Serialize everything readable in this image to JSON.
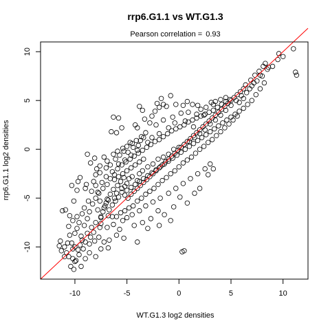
{
  "chart_data": {
    "type": "scatter",
    "title": "rrp6.G1.1 vs WT.G1.3",
    "subtitle_prefix": "Pearson correlation =",
    "subtitle_value": "0.93",
    "xlabel": "WT.G1.3 log2 densities",
    "ylabel": "rrp6.G1.1 log2 densities",
    "xlim": [
      -13.3,
      12.4
    ],
    "ylim": [
      -13.3,
      11.0
    ],
    "xticks": [
      "-10",
      "-5",
      "0",
      "5",
      "10"
    ],
    "yticks": [
      "-10",
      "-5",
      "0",
      "5",
      "10"
    ],
    "xtick_values": [
      -10,
      -5,
      0,
      5,
      10
    ],
    "ytick_values": [
      -10,
      -5,
      0,
      5,
      10
    ],
    "fit_line": {
      "intercept": 0.0,
      "slope": 1.0,
      "color": "#ff0000"
    },
    "point_style": {
      "stroke": "#000000",
      "fill": "none"
    },
    "points": [
      [
        -5.0,
        -3.5
      ],
      [
        -5.5,
        -4.0
      ],
      [
        -4.8,
        -3.0
      ],
      [
        -6.0,
        -4.5
      ],
      [
        -4.5,
        -2.8
      ],
      [
        -5.2,
        -3.8
      ],
      [
        -6.2,
        -5.0
      ],
      [
        -3.8,
        -2.5
      ],
      [
        -4.0,
        -3.2
      ],
      [
        -3.5,
        -2.2
      ],
      [
        -3.0,
        -1.8
      ],
      [
        -2.5,
        -1.5
      ],
      [
        -2.0,
        -1.0
      ],
      [
        -1.5,
        -0.8
      ],
      [
        -1.0,
        -0.5
      ],
      [
        -0.5,
        0.0
      ],
      [
        0.0,
        0.2
      ],
      [
        0.5,
        0.5
      ],
      [
        1.0,
        0.8
      ],
      [
        1.5,
        1.2
      ],
      [
        2.0,
        1.6
      ],
      [
        2.5,
        2.0
      ],
      [
        3.0,
        2.6
      ],
      [
        3.5,
        3.0
      ],
      [
        4.0,
        3.5
      ],
      [
        4.5,
        4.0
      ],
      [
        5.0,
        4.5
      ],
      [
        5.5,
        5.0
      ],
      [
        6.0,
        5.5
      ],
      [
        6.5,
        5.8
      ],
      [
        7.0,
        6.5
      ],
      [
        7.5,
        7.0
      ],
      [
        8.0,
        7.5
      ],
      [
        8.5,
        8.2
      ],
      [
        9.0,
        8.5
      ],
      [
        9.5,
        9.2
      ],
      [
        10.0,
        9.5
      ],
      [
        9.6,
        9.8
      ],
      [
        11.0,
        10.3
      ],
      [
        11.2,
        7.9
      ],
      [
        11.3,
        7.6
      ],
      [
        8.3,
        8.8
      ],
      [
        8.6,
        8.4
      ],
      [
        7.8,
        7.6
      ],
      [
        7.2,
        6.8
      ],
      [
        6.8,
        6.2
      ],
      [
        6.2,
        5.2
      ],
      [
        5.8,
        4.8
      ],
      [
        -7.0,
        -5.5
      ],
      [
        -7.2,
        -6.0
      ],
      [
        -6.8,
        -5.2
      ],
      [
        -7.5,
        -7.0
      ],
      [
        -7.8,
        -6.2
      ],
      [
        -8.0,
        -7.5
      ],
      [
        -7.6,
        -8.0
      ],
      [
        -8.2,
        -8.5
      ],
      [
        -8.5,
        -9.0
      ],
      [
        -9.0,
        -9.5
      ],
      [
        -9.5,
        -9.8
      ],
      [
        -10.0,
        -10.0
      ],
      [
        -11.4,
        -9.4
      ],
      [
        -11.5,
        -9.9
      ],
      [
        -11.0,
        -11.0
      ],
      [
        -10.8,
        -10.6
      ],
      [
        -10.2,
        -11.2
      ],
      [
        -10.0,
        -11.5
      ],
      [
        -10.1,
        -12.3
      ],
      [
        -9.6,
        -10.8
      ],
      [
        -9.2,
        -10.2
      ],
      [
        -11.2,
        -6.3
      ],
      [
        -10.9,
        -6.2
      ],
      [
        -10.5,
        -6.8
      ],
      [
        -10.2,
        -7.3
      ],
      [
        -9.8,
        -6.9
      ],
      [
        -10.1,
        -5.3
      ],
      [
        -10.3,
        -3.7
      ],
      [
        -9.8,
        -4.2
      ],
      [
        -9.7,
        -3.3
      ],
      [
        -9.5,
        -2.9
      ],
      [
        -9.0,
        -4.0
      ],
      [
        -8.9,
        -3.6
      ],
      [
        -8.5,
        -1.4
      ],
      [
        -8.8,
        -0.5
      ],
      [
        -8.1,
        -0.9
      ],
      [
        -7.9,
        -2.0
      ],
      [
        -7.6,
        -1.7
      ],
      [
        -7.2,
        -0.8
      ],
      [
        -6.9,
        -1.2
      ],
      [
        -6.3,
        -0.5
      ],
      [
        -5.9,
        -0.2
      ],
      [
        -5.4,
        0.1
      ],
      [
        -4.9,
        -0.3
      ],
      [
        -4.5,
        0.6
      ],
      [
        -4.1,
        0.9
      ],
      [
        -3.6,
        1.3
      ],
      [
        -3.2,
        1.7
      ],
      [
        -6.5,
        1.8
      ],
      [
        -6.0,
        1.7
      ],
      [
        -5.5,
        2.2
      ],
      [
        -5.8,
        3.2
      ],
      [
        -6.3,
        3.3
      ],
      [
        -4.2,
        2.5
      ],
      [
        -4.0,
        2.2
      ],
      [
        -3.3,
        3.1
      ],
      [
        -2.8,
        2.7
      ],
      [
        -2.6,
        3.4
      ],
      [
        -2.3,
        3.9
      ],
      [
        -1.9,
        4.3
      ],
      [
        -1.5,
        4.6
      ],
      [
        -3.5,
        4.0
      ],
      [
        -3.8,
        4.4
      ],
      [
        -2.1,
        4.7
      ],
      [
        -1.7,
        5.2
      ],
      [
        -1.2,
        4.4
      ],
      [
        -0.8,
        5.5
      ],
      [
        -0.3,
        4.6
      ],
      [
        0.4,
        4.5
      ],
      [
        0.8,
        4.9
      ],
      [
        1.3,
        4.6
      ],
      [
        1.8,
        4.5
      ],
      [
        2.1,
        4.1
      ],
      [
        2.6,
        4.3
      ],
      [
        3.1,
        4.8
      ],
      [
        3.3,
        4.6
      ],
      [
        4.0,
        5.1
      ],
      [
        4.5,
        5.3
      ],
      [
        3.5,
        4.9
      ],
      [
        2.4,
        3.5
      ],
      [
        1.7,
        3.6
      ],
      [
        0.9,
        3.8
      ],
      [
        0.2,
        3.7
      ],
      [
        -0.6,
        3.3
      ],
      [
        -1.5,
        3.0
      ],
      [
        -2.2,
        2.5
      ],
      [
        -0.4,
        2.7
      ],
      [
        0.6,
        2.9
      ],
      [
        1.4,
        2.3
      ],
      [
        -1.0,
        2.2
      ],
      [
        -1.9,
        1.6
      ],
      [
        -2.6,
        1.2
      ],
      [
        -3.0,
        0.7
      ],
      [
        -3.9,
        0.4
      ],
      [
        -4.6,
        -0.6
      ],
      [
        -5.2,
        -1.1
      ],
      [
        -5.8,
        -1.5
      ],
      [
        -6.4,
        -2.3
      ],
      [
        -7.0,
        -2.8
      ],
      [
        -7.4,
        -3.4
      ],
      [
        -8.0,
        -3.7
      ],
      [
        -8.4,
        -4.3
      ],
      [
        -8.7,
        -5.3
      ],
      [
        -9.1,
        -6.0
      ],
      [
        -9.3,
        -6.6
      ],
      [
        -9.6,
        -7.5
      ],
      [
        -9.1,
        -7.8
      ],
      [
        -8.8,
        -7.1
      ],
      [
        -8.6,
        -6.4
      ],
      [
        -8.3,
        -5.6
      ],
      [
        -8.0,
        -5.0
      ],
      [
        -7.7,
        -4.5
      ],
      [
        -7.3,
        -4.0
      ],
      [
        -6.9,
        -3.6
      ],
      [
        -6.6,
        -3.0
      ],
      [
        -6.2,
        -2.6
      ],
      [
        -5.9,
        -2.0
      ],
      [
        -5.5,
        -1.6
      ],
      [
        -5.1,
        -1.3
      ],
      [
        -4.7,
        -1.0
      ],
      [
        -4.3,
        -0.7
      ],
      [
        -3.9,
        -0.4
      ],
      [
        -3.5,
        -0.1
      ],
      [
        -3.1,
        0.2
      ],
      [
        -2.7,
        0.5
      ],
      [
        -2.3,
        0.8
      ],
      [
        -1.9,
        1.0
      ],
      [
        -1.5,
        1.3
      ],
      [
        -1.1,
        1.6
      ],
      [
        -0.7,
        1.9
      ],
      [
        -0.3,
        2.1
      ],
      [
        0.1,
        2.3
      ],
      [
        0.5,
        2.5
      ],
      [
        0.9,
        2.8
      ],
      [
        1.3,
        3.0
      ],
      [
        1.7,
        3.2
      ],
      [
        2.1,
        3.4
      ],
      [
        2.5,
        3.6
      ],
      [
        2.9,
        3.8
      ],
      [
        3.3,
        4.0
      ],
      [
        3.7,
        4.3
      ],
      [
        4.1,
        4.6
      ],
      [
        4.5,
        4.9
      ],
      [
        4.9,
        5.1
      ],
      [
        -6.8,
        -6.8
      ],
      [
        -6.4,
        -6.9
      ],
      [
        -6.0,
        -6.9
      ],
      [
        -5.6,
        -6.5
      ],
      [
        -5.2,
        -6.3
      ],
      [
        -4.8,
        -6.0
      ],
      [
        -4.4,
        -5.8
      ],
      [
        -4.0,
        -5.3
      ],
      [
        -3.6,
        -5.0
      ],
      [
        -3.2,
        -4.6
      ],
      [
        -2.8,
        -4.3
      ],
      [
        -2.4,
        -4.0
      ],
      [
        -2.0,
        -3.6
      ],
      [
        -1.6,
        -3.2
      ],
      [
        -1.2,
        -2.9
      ],
      [
        -0.8,
        -2.5
      ],
      [
        -0.4,
        -2.2
      ],
      [
        0.0,
        -1.8
      ],
      [
        0.4,
        -1.4
      ],
      [
        0.8,
        -1.1
      ],
      [
        1.2,
        -0.8
      ],
      [
        1.6,
        -0.4
      ],
      [
        2.0,
        0.0
      ],
      [
        2.4,
        0.3
      ],
      [
        2.8,
        0.7
      ],
      [
        3.2,
        1.0
      ],
      [
        3.6,
        1.4
      ],
      [
        4.0,
        1.8
      ],
      [
        4.4,
        2.2
      ],
      [
        4.8,
        2.6
      ],
      [
        5.2,
        3.0
      ],
      [
        5.6,
        3.4
      ],
      [
        -5.4,
        -7.3
      ],
      [
        -5.0,
        -7.0
      ],
      [
        -4.5,
        -6.7
      ],
      [
        -3.8,
        -6.3
      ],
      [
        -3.2,
        -5.8
      ],
      [
        -2.5,
        -5.4
      ],
      [
        -1.8,
        -5.0
      ],
      [
        -1.0,
        -4.5
      ],
      [
        -0.3,
        -4.0
      ],
      [
        0.4,
        -3.5
      ],
      [
        1.1,
        -3.0
      ],
      [
        1.8,
        -2.5
      ],
      [
        2.5,
        -2.0
      ],
      [
        3.0,
        -1.5
      ],
      [
        0.5,
        -10.4
      ],
      [
        0.3,
        -10.5
      ],
      [
        2.0,
        -4.0
      ],
      [
        2.8,
        -2.6
      ],
      [
        3.3,
        -2.0
      ],
      [
        -2.0,
        -6.3
      ],
      [
        -4.0,
        -9.5
      ],
      [
        -5.3,
        -9.1
      ],
      [
        -6.0,
        -8.8
      ],
      [
        -6.7,
        -9.3
      ],
      [
        -7.2,
        -9.5
      ],
      [
        -7.7,
        -9.0
      ],
      [
        -8.1,
        -9.4
      ],
      [
        -6.9,
        -8.0
      ],
      [
        -6.3,
        -7.7
      ],
      [
        -5.7,
        -8.2
      ],
      [
        -7.5,
        -7.6
      ],
      [
        -8.4,
        -8.0
      ],
      [
        -8.8,
        -8.6
      ],
      [
        -9.4,
        -8.9
      ],
      [
        -10.6,
        -7.9
      ],
      [
        -10.5,
        -8.8
      ],
      [
        -10.3,
        -9.6
      ],
      [
        -10.4,
        -12.0
      ],
      [
        -9.4,
        -12.0
      ],
      [
        -8.6,
        -10.6
      ],
      [
        -9.9,
        -11.4
      ],
      [
        -5.0,
        -4.2
      ],
      [
        -4.6,
        -3.9
      ],
      [
        -4.2,
        -3.6
      ],
      [
        -3.8,
        -3.3
      ],
      [
        -3.4,
        -3.0
      ],
      [
        -3.0,
        -2.7
      ],
      [
        -2.6,
        -2.4
      ],
      [
        -2.2,
        -2.1
      ],
      [
        -1.8,
        -1.8
      ],
      [
        -1.4,
        -1.5
      ],
      [
        -1.0,
        -1.2
      ],
      [
        -0.6,
        -0.9
      ],
      [
        -0.2,
        -0.6
      ],
      [
        0.2,
        -0.3
      ],
      [
        0.6,
        0.0
      ],
      [
        1.0,
        0.3
      ],
      [
        1.4,
        0.6
      ],
      [
        1.8,
        0.9
      ],
      [
        2.2,
        1.2
      ],
      [
        2.6,
        1.5
      ],
      [
        3.0,
        1.8
      ],
      [
        3.4,
        2.1
      ],
      [
        3.8,
        2.4
      ],
      [
        4.2,
        2.7
      ],
      [
        4.6,
        3.0
      ],
      [
        5.0,
        3.3
      ],
      [
        5.4,
        3.6
      ],
      [
        5.8,
        3.9
      ],
      [
        6.2,
        4.2
      ],
      [
        6.6,
        4.6
      ],
      [
        7.0,
        5.0
      ],
      [
        7.4,
        5.6
      ],
      [
        7.8,
        6.2
      ],
      [
        8.2,
        6.8
      ],
      [
        6.4,
        6.6
      ],
      [
        6.9,
        7.1
      ],
      [
        7.3,
        7.6
      ],
      [
        7.7,
        8.0
      ],
      [
        8.1,
        8.5
      ],
      [
        -7.6,
        -5.3
      ],
      [
        -7.8,
        -4.4
      ],
      [
        -8.2,
        -3.3
      ],
      [
        -8.0,
        -2.6
      ],
      [
        -7.6,
        -2.4
      ],
      [
        -7.0,
        -1.9
      ],
      [
        -6.6,
        -1.6
      ],
      [
        -6.1,
        -1.0
      ],
      [
        -5.7,
        -0.6
      ],
      [
        -5.3,
        -0.2
      ],
      [
        -5.0,
        0.3
      ],
      [
        -4.7,
        0.7
      ],
      [
        -4.4,
        0.2
      ],
      [
        -4.0,
        -0.1
      ],
      [
        -3.7,
        0.9
      ],
      [
        -3.4,
        1.2
      ],
      [
        -6.2,
        -3.1
      ],
      [
        -5.8,
        -2.8
      ],
      [
        -5.4,
        -2.5
      ],
      [
        -5.0,
        -2.2
      ],
      [
        -4.6,
        -1.9
      ],
      [
        -4.2,
        -1.6
      ],
      [
        -3.8,
        -1.3
      ],
      [
        -3.4,
        -1.0
      ],
      [
        -6.6,
        -4.6
      ],
      [
        -6.3,
        -4.1
      ],
      [
        -5.9,
        -3.7
      ],
      [
        -5.6,
        -3.3
      ],
      [
        -5.3,
        -2.9
      ],
      [
        -6.9,
        -5.1
      ],
      [
        -7.1,
        -5.8
      ],
      [
        -7.3,
        -6.4
      ],
      [
        -7.5,
        -6.9
      ],
      [
        -6.7,
        -6.2
      ],
      [
        -6.4,
        -5.7
      ],
      [
        -6.1,
        -5.3
      ],
      [
        -5.8,
        -4.9
      ],
      [
        -5.5,
        -4.4
      ],
      [
        -5.2,
        -4.7
      ],
      [
        -4.9,
        -5.0
      ],
      [
        -4.6,
        -4.6
      ],
      [
        -4.3,
        -4.3
      ],
      [
        -4.0,
        -4.0
      ],
      [
        -3.7,
        -3.7
      ],
      [
        -3.4,
        -3.4
      ],
      [
        -3.1,
        -3.1
      ],
      [
        -2.8,
        -2.8
      ],
      [
        -2.5,
        -2.5
      ],
      [
        -2.2,
        -2.2
      ],
      [
        -1.9,
        -1.9
      ],
      [
        -1.6,
        -1.6
      ],
      [
        -1.3,
        -1.3
      ],
      [
        -1.0,
        -1.0
      ],
      [
        -0.7,
        -0.7
      ],
      [
        -0.4,
        -0.4
      ],
      [
        -0.1,
        -0.1
      ],
      [
        0.2,
        0.2
      ],
      [
        0.5,
        0.5
      ],
      [
        0.8,
        0.8
      ],
      [
        1.1,
        1.1
      ],
      [
        1.4,
        1.4
      ],
      [
        1.7,
        1.7
      ],
      [
        2.0,
        2.0
      ],
      [
        2.3,
        2.3
      ],
      [
        2.6,
        2.6
      ],
      [
        2.9,
        2.9
      ],
      [
        3.2,
        3.2
      ],
      [
        3.5,
        3.5
      ],
      [
        3.8,
        3.8
      ],
      [
        4.1,
        4.1
      ],
      [
        4.4,
        4.4
      ],
      [
        4.7,
        4.7
      ],
      [
        5.0,
        5.0
      ],
      [
        5.3,
        5.3
      ],
      [
        5.6,
        5.6
      ],
      [
        5.9,
        5.9
      ],
      [
        6.2,
        6.2
      ],
      [
        -0.5,
        -5.9
      ],
      [
        0.1,
        -4.9
      ],
      [
        -1.4,
        -6.7
      ],
      [
        -2.7,
        -7.1
      ],
      [
        -3.5,
        -7.5
      ],
      [
        -4.3,
        -7.8
      ],
      [
        -3.0,
        -8.1
      ],
      [
        -1.9,
        -7.8
      ],
      [
        -0.8,
        -7.3
      ],
      [
        0.8,
        -5.5
      ],
      [
        1.5,
        -4.5
      ],
      [
        -8.0,
        -11.0
      ],
      [
        -7.5,
        -10.2
      ],
      [
        -6.8,
        -10.1
      ],
      [
        -8.6,
        -9.7
      ],
      [
        -9.0,
        -11.2
      ],
      [
        -9.8,
        -8.1
      ],
      [
        -10.0,
        -8.6
      ],
      [
        -10.2,
        -10.2
      ],
      [
        -10.7,
        -9.6
      ],
      [
        -11.0,
        -10.0
      ],
      [
        -11.3,
        -10.4
      ],
      [
        -10.6,
        -11.0
      ],
      [
        -9.7,
        -10.3
      ],
      [
        -9.3,
        -9.3
      ]
    ]
  }
}
